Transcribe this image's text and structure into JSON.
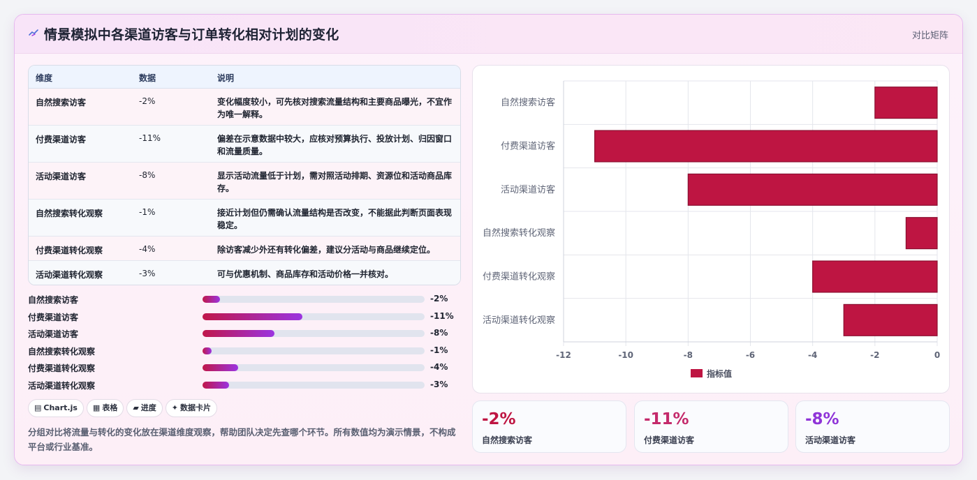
{
  "header": {
    "title": "情景模拟中各渠道访客与订单转化相对计划的变化",
    "action_label": "对比矩阵",
    "icon": "trend-line-icon"
  },
  "table": {
    "columns": [
      "维度",
      "数据",
      "说明"
    ],
    "rows": [
      {
        "dim": "自然搜索访客",
        "value": "-2%",
        "note": "变化幅度较小，可先核对搜索流量结构和主要商品曝光，不宜作为唯一解释。"
      },
      {
        "dim": "付费渠道访客",
        "value": "-11%",
        "note": "偏差在示意数据中较大，应核对预算执行、投放计划、归因窗口和流量质量。"
      },
      {
        "dim": "活动渠道访客",
        "value": "-8%",
        "note": "显示活动流量低于计划，需对照活动排期、资源位和活动商品库存。"
      },
      {
        "dim": "自然搜索转化观察",
        "value": "-1%",
        "note": "接近计划但仍需确认流量结构是否改变，不能据此判断页面表现稳定。"
      },
      {
        "dim": "付费渠道转化观察",
        "value": "-4%",
        "note": "除访客减少外还有转化偏差，建议分活动与商品继续定位。"
      },
      {
        "dim": "活动渠道转化观察",
        "value": "-3%",
        "note": "可与优惠机制、商品库存和活动价格一并核对。"
      }
    ]
  },
  "progress": [
    {
      "label": "自然搜索访客",
      "value": "-2%",
      "fraction": 0.08
    },
    {
      "label": "付费渠道访客",
      "value": "-11%",
      "fraction": 0.45
    },
    {
      "label": "活动渠道访客",
      "value": "-8%",
      "fraction": 0.325
    },
    {
      "label": "自然搜索转化观察",
      "value": "-1%",
      "fraction": 0.04
    },
    {
      "label": "付费渠道转化观察",
      "value": "-4%",
      "fraction": 0.16
    },
    {
      "label": "活动渠道转化观察",
      "value": "-3%",
      "fraction": 0.12
    }
  ],
  "chips": [
    {
      "icon": "▤",
      "label": "Chart.js"
    },
    {
      "icon": "▦",
      "label": "表格"
    },
    {
      "icon": "▰",
      "label": "进度"
    },
    {
      "icon": "✦",
      "label": "数据卡片"
    }
  ],
  "footnote": "分组对比将流量与转化的变化放在渠道维度观察，帮助团队决定先查哪个环节。所有数值均为演示情景，不构成平台或行业基准。",
  "stats": [
    {
      "value": "-2%",
      "label": "自然搜索访客",
      "color": "#be1542"
    },
    {
      "value": "-11%",
      "label": "付费渠道访客",
      "color": "#c42a6b"
    },
    {
      "value": "-8%",
      "label": "活动渠道访客",
      "color": "#8f34d8"
    }
  ],
  "chart_data": {
    "type": "bar",
    "orientation": "horizontal",
    "categories": [
      "自然搜索访客",
      "付费渠道访客",
      "活动渠道访客",
      "自然搜索转化观察",
      "付费渠道转化观察",
      "活动渠道转化观察"
    ],
    "series": [
      {
        "name": "指标值",
        "values": [
          -2,
          -11,
          -8,
          -1,
          -4,
          -3
        ],
        "color": "#be1542"
      }
    ],
    "xlim": [
      -12,
      0
    ],
    "xticks": [
      -12,
      -10,
      -8,
      -6,
      -4,
      -2,
      0
    ],
    "grid": true,
    "legend": "bottom"
  }
}
